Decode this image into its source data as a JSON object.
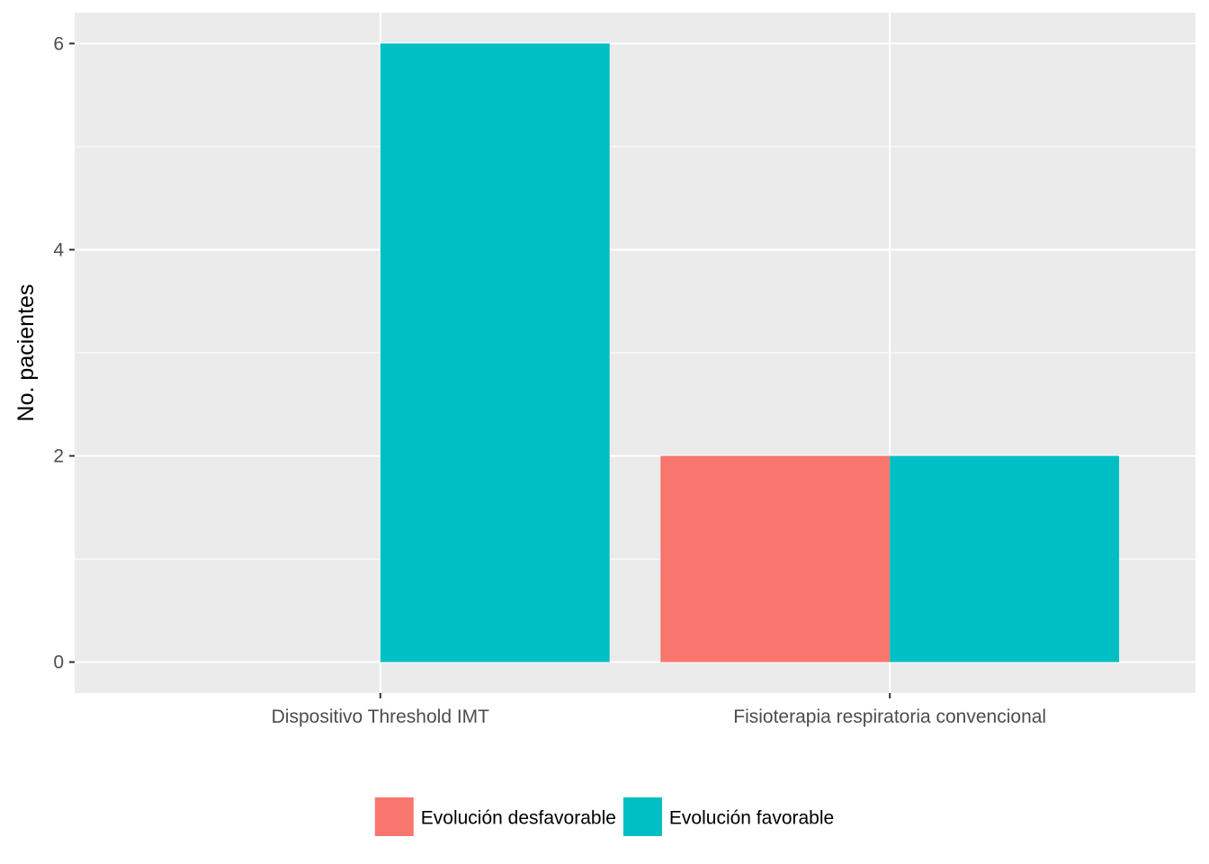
{
  "chart_data": {
    "type": "bar",
    "title": "",
    "xlabel": "",
    "ylabel": "No. pacientes",
    "categories": [
      "Dispositivo Threshold IMT",
      "Fisioterapia respiratoria convencional"
    ],
    "series": [
      {
        "name": "Evolución desfavorable",
        "color": "#F8766D",
        "values": [
          0,
          2
        ]
      },
      {
        "name": "Evolución favorable",
        "color": "#00BFC4",
        "values": [
          6,
          2
        ]
      }
    ],
    "ylim": [
      -0.3,
      6.3
    ],
    "yticks": [
      0,
      2,
      4,
      6
    ],
    "y_minor_ticks": [
      1,
      3,
      5
    ],
    "grid": true,
    "legend_position": "bottom",
    "panel_background": "#EBEBEB",
    "grid_color": "#FFFFFF"
  }
}
